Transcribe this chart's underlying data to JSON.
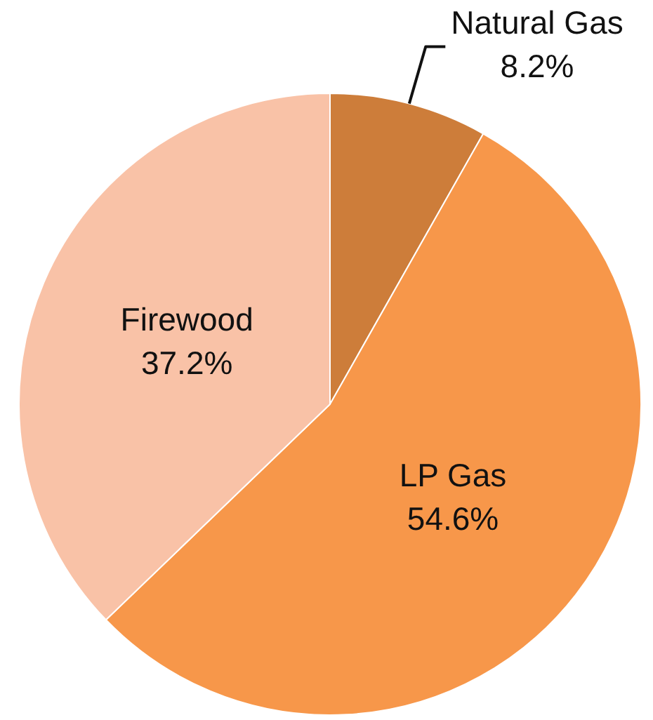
{
  "chart_data": {
    "type": "pie",
    "categories": [
      "Natural Gas",
      "LP Gas",
      "Firewood"
    ],
    "values": [
      8.2,
      54.6,
      37.2
    ],
    "colors": [
      "#cd7d3a",
      "#f7974a",
      "#f9c2a7"
    ],
    "value_labels": [
      "8.2%",
      "54.6%",
      "37.2%"
    ]
  }
}
